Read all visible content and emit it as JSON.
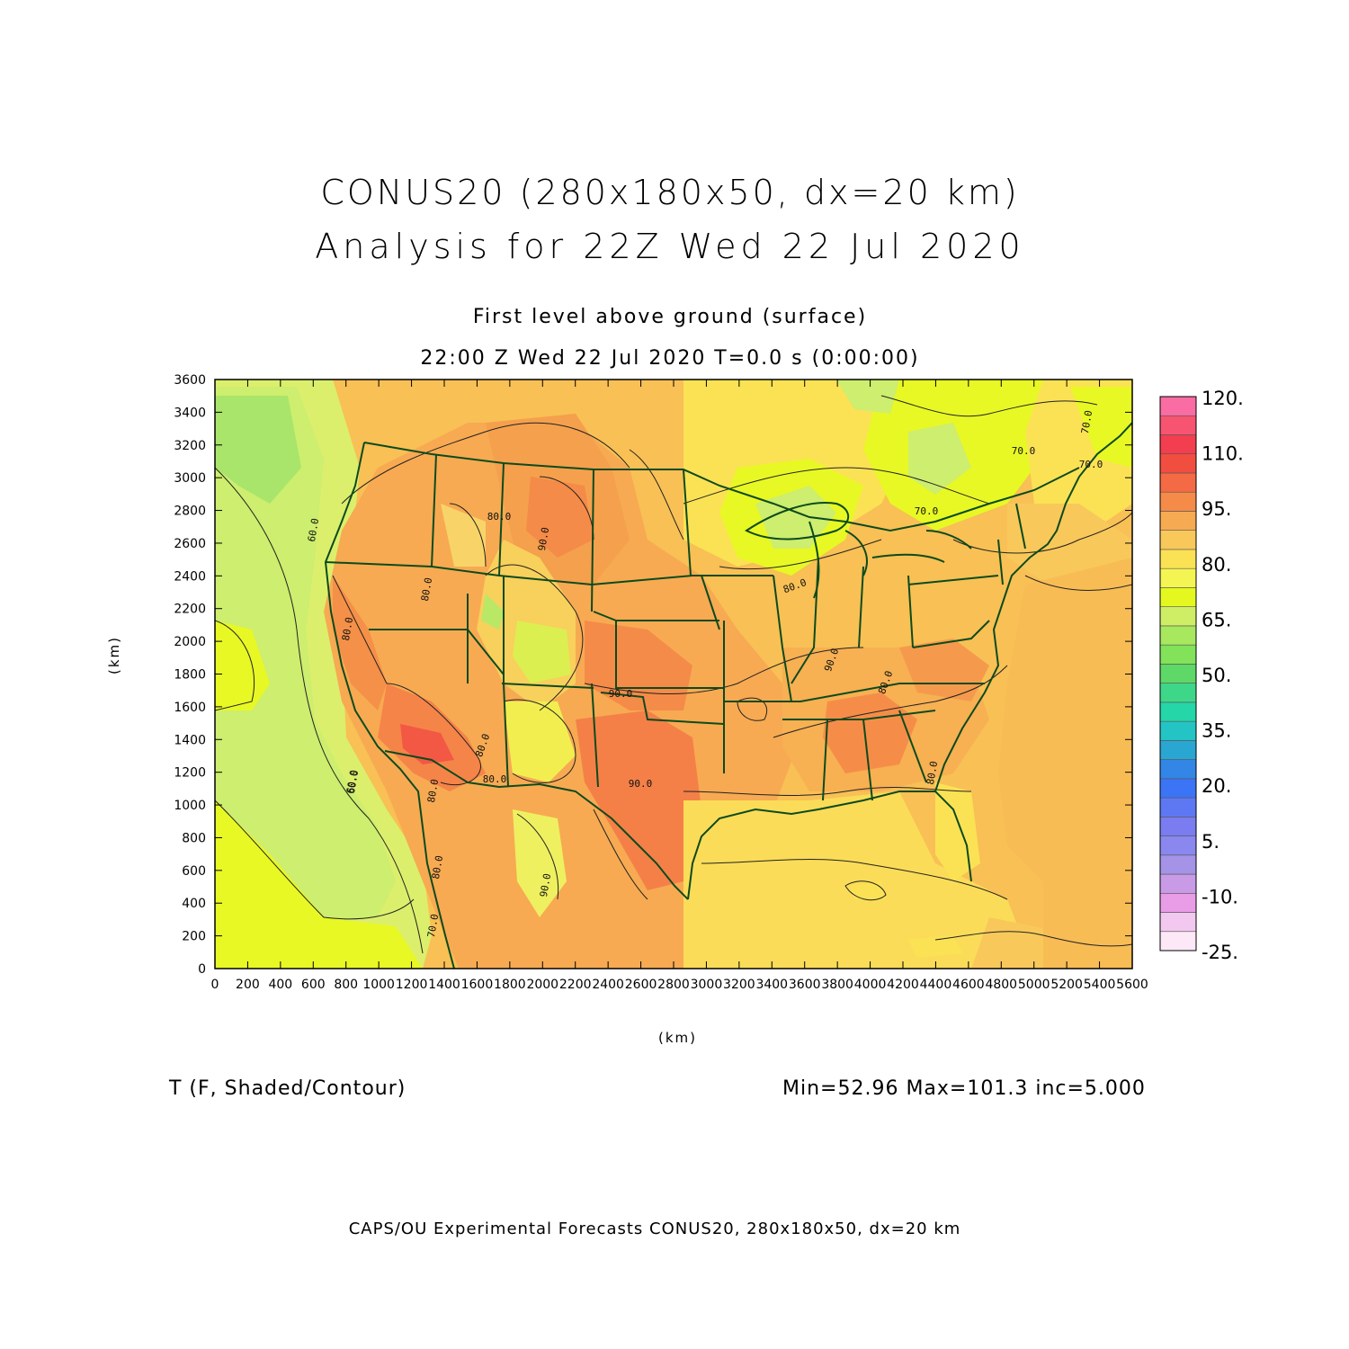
{
  "title_line1": "CONUS20 (280x180x50, dx=20 km)",
  "title_line2": "Analysis for 22Z Wed 22 Jul 2020",
  "subtitle_line1": "First level above ground (surface)",
  "subtitle_line2": "22:00 Z Wed 22 Jul 2020    T=0.0 s (0:00:00)",
  "field_label": "T (F, Shaded/Contour)",
  "stats": "Min=52.96  Max=101.3  inc=5.000",
  "footer": "CAPS/OU Experimental Forecasts  CONUS20, 280x180x50, dx=20 km",
  "axes": {
    "xlabel": "(km)",
    "ylabel": "(km)",
    "x_ticks": [
      "0",
      "200",
      "400",
      "600",
      "800",
      "1000",
      "1200",
      "1400",
      "1600",
      "1800",
      "2000",
      "2200",
      "2400",
      "2600",
      "2800",
      "3000",
      "3200",
      "3400",
      "3600",
      "3800",
      "4000",
      "4200",
      "4400",
      "4600",
      "4800",
      "5000",
      "5200",
      "5400",
      "5600"
    ],
    "y_ticks": [
      "0",
      "200",
      "400",
      "600",
      "800",
      "1000",
      "1200",
      "1400",
      "1600",
      "1800",
      "2000",
      "2200",
      "2400",
      "2600",
      "2800",
      "3000",
      "3200",
      "3400",
      "3600"
    ],
    "x_range": [
      0,
      5600
    ],
    "y_range": [
      0,
      3600
    ]
  },
  "colorbar": {
    "labels": [
      "120.",
      "110.",
      "95.",
      "80.",
      "65.",
      "50.",
      "35.",
      "20.",
      "5.",
      "-10.",
      "-25."
    ],
    "colors": [
      "#fde8f8",
      "#f2c8f0",
      "#e89de6",
      "#c99be6",
      "#a493e6",
      "#8a88ee",
      "#7a7cf0",
      "#5e78f4",
      "#3c74f6",
      "#3386e6",
      "#2aa6d2",
      "#25c4c4",
      "#25d6a8",
      "#3ed78a",
      "#5ed866",
      "#82e25a",
      "#a7e85e",
      "#cfee66",
      "#e4f820",
      "#f4f552",
      "#fbe255",
      "#f9c85a",
      "#f6aa52",
      "#f58b48",
      "#f46a44",
      "#f24e40",
      "#f23e4e",
      "#f75471",
      "#f96da4"
    ]
  },
  "contour_labels": [
    "60.0",
    "60.0",
    "80.0",
    "90.0",
    "80.0",
    "90.0",
    "80.0",
    "90.0",
    "80.0",
    "70.0",
    "80.0",
    "80.0",
    "90.0",
    "70.0",
    "80.0",
    "90.0",
    "80.0",
    "80.0",
    "60.0",
    "80.0",
    "70.0",
    "70.0",
    "70.0"
  ]
}
